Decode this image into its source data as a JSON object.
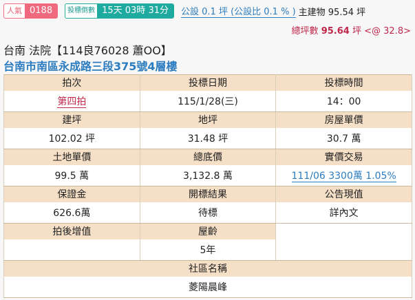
{
  "header": {
    "popularity_label": "人氣",
    "popularity_value": "0188",
    "countdown_label": "投標倒數",
    "countdown_value": "15天 03時 31分",
    "public_area": "公設 0.1 坪 (公設比 0.1 % )",
    "main_building": "主建物 95.54 坪",
    "total_label": "總坪數",
    "total_value": "95.64",
    "total_unit": "坪",
    "unit_price": "<@ 32.8>"
  },
  "case": {
    "title": "台南 法院【114良76028 蕭OO】",
    "address": "台南市南區永成路三段375號4層樓"
  },
  "table": {
    "r1": {
      "h": [
        "拍次",
        "投標日期",
        "投標時間"
      ],
      "v": [
        "第四拍",
        "115/1/28(三)",
        "14：00"
      ]
    },
    "r2": {
      "h": [
        "建坪",
        "地坪",
        "房屋單價"
      ],
      "v": [
        "102.02 坪",
        "31.48 坪",
        "30.7 萬"
      ]
    },
    "r3": {
      "h": [
        "土地單價",
        "總底價",
        "實價交易"
      ],
      "v": [
        "99.5 萬",
        "3,132.8 萬",
        "111/06 3300萬 1.05%"
      ]
    },
    "r4": {
      "h": [
        "保證金",
        "開標結果",
        "公告現值"
      ],
      "v": [
        "626.6萬",
        "待標",
        "詳內文"
      ]
    },
    "r5": {
      "h": [
        "拍後增值",
        "屋齡"
      ],
      "v": [
        "",
        "5年"
      ]
    },
    "r6": {
      "h": "社區名稱",
      "v": "菱陽晨峰"
    }
  },
  "colors": {
    "header_bg": "#f5dfc6",
    "link": "#2c7cc0",
    "accent_red": "#c2274a",
    "popularity": "#f06a7f",
    "countdown": "#1faaa0"
  }
}
